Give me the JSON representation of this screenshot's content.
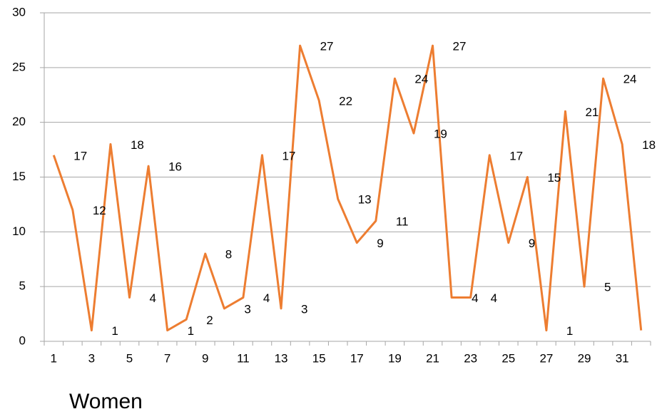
{
  "chart_data": {
    "type": "line",
    "title": "Women",
    "categories": [
      1,
      null,
      3,
      null,
      5,
      null,
      7,
      null,
      9,
      null,
      11,
      null,
      13,
      null,
      15,
      null,
      17,
      null,
      19,
      null,
      21,
      null,
      23,
      null,
      25,
      null,
      27,
      null,
      29,
      null,
      31,
      null
    ],
    "series": [
      {
        "name": "Women",
        "color": "#ed7d31",
        "values": [
          17,
          12,
          1,
          18,
          4,
          16,
          1,
          2,
          8,
          3,
          4,
          17,
          3,
          27,
          22,
          13,
          9,
          11,
          24,
          19,
          27,
          4,
          4,
          17,
          9,
          15,
          1,
          21,
          5,
          24,
          18,
          1
        ]
      }
    ],
    "ylim": [
      0,
      30
    ],
    "yticks": [
      0,
      5,
      10,
      15,
      20,
      25,
      30
    ],
    "grid": true,
    "data_labels": true
  }
}
